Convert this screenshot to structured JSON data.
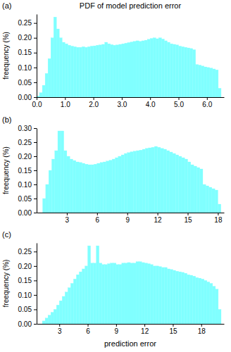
{
  "chart_data": [
    {
      "type": "histogram",
      "title": "PDF of model prediction error",
      "annotations": [
        "(a)"
      ],
      "y_label": "freequency (%)",
      "color": "#80ffff",
      "grid": false,
      "xlim": [
        0,
        6.6
      ],
      "ylim": [
        0,
        0.28
      ],
      "xticks": [
        {
          "value": 0,
          "label": "0.0"
        },
        {
          "value": 1,
          "label": "1.0"
        },
        {
          "value": 2,
          "label": "2.0"
        },
        {
          "value": 3,
          "label": "3.0"
        },
        {
          "value": 4,
          "label": "4.0"
        },
        {
          "value": 5,
          "label": "5.0"
        },
        {
          "value": 6,
          "label": "6.0"
        }
      ],
      "yticks": [
        {
          "value": 0,
          "label": "0.00"
        },
        {
          "value": 0.05,
          "label": "0.05"
        },
        {
          "value": 0.1,
          "label": "0.10"
        },
        {
          "value": 0.15,
          "label": "0.15"
        },
        {
          "value": 0.2,
          "label": "0.20"
        },
        {
          "value": 0.25,
          "label": "0.25"
        }
      ],
      "bins": [
        0,
        0.1,
        0.2,
        0.3,
        0.4,
        0.5,
        0.6,
        0.7,
        0.8,
        0.9,
        1.0,
        1.1,
        1.2,
        1.3,
        1.4,
        1.5,
        1.6,
        1.7,
        1.8,
        1.9,
        2.0,
        2.1,
        2.2,
        2.3,
        2.4,
        2.5,
        2.6,
        2.7,
        2.8,
        2.9,
        3.0,
        3.1,
        3.2,
        3.3,
        3.4,
        3.5,
        3.6,
        3.7,
        3.8,
        3.9,
        4.0,
        4.1,
        4.2,
        4.3,
        4.4,
        4.5,
        4.6,
        4.7,
        4.8,
        4.9,
        5.0,
        5.1,
        5.2,
        5.3,
        5.4,
        5.5,
        5.6,
        5.7,
        5.8,
        5.9,
        6.0,
        6.1,
        6.2,
        6.3,
        6.4,
        6.5
      ],
      "values": [
        0.004,
        0.015,
        0.04,
        0.08,
        0.13,
        0.2,
        0.27,
        0.23,
        0.2,
        0.185,
        0.18,
        0.175,
        0.172,
        0.17,
        0.168,
        0.168,
        0.17,
        0.168,
        0.17,
        0.172,
        0.173,
        0.175,
        0.176,
        0.178,
        0.185,
        0.18,
        0.177,
        0.175,
        0.176,
        0.178,
        0.18,
        0.182,
        0.184,
        0.186,
        0.188,
        0.19,
        0.188,
        0.19,
        0.192,
        0.195,
        0.198,
        0.2,
        0.197,
        0.2,
        0.196,
        0.19,
        0.185,
        0.18,
        0.178,
        0.176,
        0.172,
        0.17,
        0.168,
        0.166,
        0.164,
        0.16,
        0.11,
        0.108,
        0.105,
        0.102,
        0.1,
        0.098,
        0.095,
        0.092,
        0.03
      ]
    },
    {
      "type": "histogram",
      "annotations": [
        "(b)"
      ],
      "y_label": "freequency (%)",
      "color": "#80ffff",
      "grid": false,
      "xlim": [
        0,
        18.6
      ],
      "ylim": [
        0,
        0.3
      ],
      "xticks": [
        3,
        6,
        9,
        12,
        15,
        18
      ],
      "yticks": [
        {
          "value": 0,
          "label": "0.00"
        },
        {
          "value": 0.05,
          "label": "0.05"
        },
        {
          "value": 0.1,
          "label": "0.10"
        },
        {
          "value": 0.15,
          "label": "0.15"
        },
        {
          "value": 0.2,
          "label": "0.20"
        },
        {
          "value": 0.25,
          "label": "0.25"
        },
        {
          "value": 0.3,
          "label": "0.30"
        }
      ],
      "bins": [
        0.6,
        0.9,
        1.2,
        1.5,
        1.8,
        2.1,
        2.4,
        2.7,
        3.0,
        3.3,
        3.6,
        3.9,
        4.2,
        4.5,
        4.8,
        5.1,
        5.4,
        5.7,
        6.0,
        6.3,
        6.6,
        6.9,
        7.2,
        7.5,
        7.8,
        8.1,
        8.4,
        8.7,
        9.0,
        9.3,
        9.6,
        9.9,
        10.2,
        10.5,
        10.8,
        11.1,
        11.4,
        11.7,
        12.0,
        12.3,
        12.6,
        12.9,
        13.2,
        13.5,
        13.8,
        14.1,
        14.4,
        14.7,
        15.0,
        15.3,
        15.6,
        15.9,
        16.2,
        16.5,
        16.8,
        17.1,
        17.4,
        17.7,
        18.0,
        18.3
      ],
      "values": [
        0.05,
        0.1,
        0.15,
        0.19,
        0.22,
        0.29,
        0.29,
        0.22,
        0.2,
        0.19,
        0.185,
        0.18,
        0.178,
        0.175,
        0.172,
        0.17,
        0.17,
        0.172,
        0.175,
        0.178,
        0.18,
        0.183,
        0.186,
        0.19,
        0.195,
        0.2,
        0.205,
        0.21,
        0.213,
        0.216,
        0.218,
        0.22,
        0.222,
        0.225,
        0.228,
        0.23,
        0.232,
        0.235,
        0.232,
        0.228,
        0.225,
        0.22,
        0.215,
        0.21,
        0.205,
        0.2,
        0.195,
        0.19,
        0.18,
        0.17,
        0.165,
        0.16,
        0.155,
        0.1,
        0.095,
        0.09,
        0.085,
        0.08,
        0.03
      ]
    },
    {
      "type": "histogram",
      "annotations": [
        "(c)"
      ],
      "y_label": "freequency (%)",
      "x_label": "prediction error",
      "color": "#80ffff",
      "grid": false,
      "xlim": [
        0.6,
        20.4
      ],
      "ylim": [
        0,
        0.28
      ],
      "xticks": [
        3,
        6,
        9,
        12,
        15,
        18
      ],
      "yticks": [
        {
          "value": 0,
          "label": "0.00"
        },
        {
          "value": 0.05,
          "label": "0.05"
        },
        {
          "value": 0.1,
          "label": "0.10"
        },
        {
          "value": 0.15,
          "label": "0.15"
        },
        {
          "value": 0.2,
          "label": "0.20"
        },
        {
          "value": 0.25,
          "label": "0.25"
        }
      ],
      "bins": [
        1.2,
        1.5,
        1.8,
        2.1,
        2.4,
        2.7,
        3.0,
        3.3,
        3.6,
        3.9,
        4.2,
        4.5,
        4.8,
        5.1,
        5.4,
        5.7,
        6.0,
        6.3,
        6.6,
        6.9,
        7.2,
        7.5,
        7.8,
        8.1,
        8.4,
        8.7,
        9.0,
        9.3,
        9.6,
        9.9,
        10.2,
        10.5,
        10.8,
        11.1,
        11.4,
        11.7,
        12.0,
        12.3,
        12.6,
        12.9,
        13.2,
        13.5,
        13.8,
        14.1,
        14.4,
        14.7,
        15.0,
        15.3,
        15.6,
        15.9,
        16.2,
        16.5,
        16.8,
        17.1,
        17.4,
        17.7,
        18.0,
        18.3,
        18.6,
        18.9,
        19.2,
        19.5,
        19.8,
        20.1
      ],
      "values": [
        0.01,
        0.02,
        0.03,
        0.04,
        0.05,
        0.065,
        0.08,
        0.095,
        0.11,
        0.125,
        0.14,
        0.155,
        0.17,
        0.18,
        0.19,
        0.2,
        0.27,
        0.21,
        0.21,
        0.27,
        0.21,
        0.205,
        0.205,
        0.208,
        0.21,
        0.21,
        0.205,
        0.205,
        0.21,
        0.21,
        0.212,
        0.21,
        0.21,
        0.215,
        0.215,
        0.212,
        0.21,
        0.208,
        0.205,
        0.2,
        0.2,
        0.198,
        0.195,
        0.195,
        0.19,
        0.188,
        0.185,
        0.182,
        0.18,
        0.178,
        0.175,
        0.17,
        0.168,
        0.165,
        0.16,
        0.158,
        0.155,
        0.15,
        0.145,
        0.14,
        0.13,
        0.12,
        0.05
      ]
    }
  ]
}
